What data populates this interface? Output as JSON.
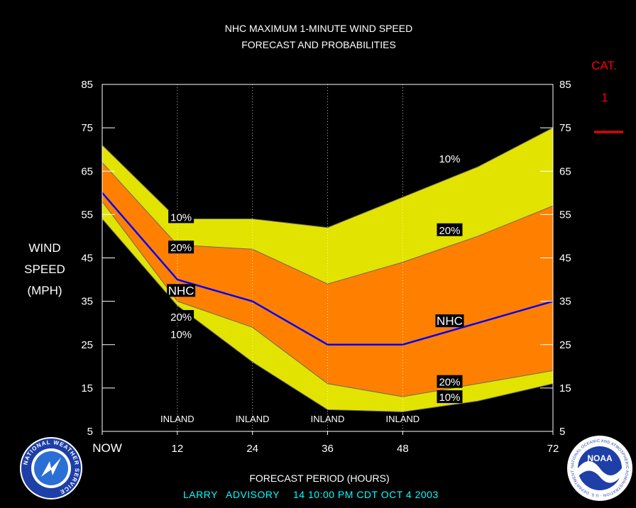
{
  "chart_data": {
    "type": "area",
    "title_line1": "NHC MAXIMUM 1-MINUTE WIND SPEED",
    "title_line2": "FORECAST AND PROBABILITIES",
    "ylabel": [
      "WIND",
      "SPEED",
      "(MPH)"
    ],
    "xlabel": "FORECAST PERIOD (HOURS)",
    "ylim": [
      5,
      85
    ],
    "xlim": [
      0,
      72
    ],
    "yticks": [
      85,
      75,
      65,
      55,
      45,
      35,
      25,
      15,
      5
    ],
    "xticks": [
      {
        "x": 0,
        "label": "NOW"
      },
      {
        "x": 12,
        "label": "12"
      },
      {
        "x": 24,
        "label": "24"
      },
      {
        "x": 36,
        "label": "36"
      },
      {
        "x": 48,
        "label": "48"
      },
      {
        "x": 72,
        "label": "72"
      }
    ],
    "inland_hours": [
      12,
      24,
      36,
      48
    ],
    "inland_label": "INLAND",
    "x": [
      0,
      12,
      24,
      36,
      48,
      60,
      72
    ],
    "series": [
      {
        "name": "10%",
        "role": "upper_10",
        "values": [
          71,
          54,
          54,
          52,
          59,
          66,
          75
        ]
      },
      {
        "name": "20%",
        "role": "upper_20",
        "values": [
          67,
          48,
          47,
          39,
          44,
          50,
          57
        ]
      },
      {
        "name": "NHC",
        "role": "forecast",
        "values": [
          60,
          40,
          35,
          25,
          25,
          30,
          35
        ]
      },
      {
        "name": "20%",
        "role": "lower_20",
        "values": [
          58,
          35,
          29,
          16,
          13,
          16,
          19
        ]
      },
      {
        "name": "10%",
        "role": "lower_10",
        "values": [
          54,
          34,
          21,
          10,
          9.5,
          12,
          16
        ]
      }
    ],
    "band_labels": [
      {
        "text": "10%",
        "x": 12.6,
        "y": 54.5
      },
      {
        "text": "20%",
        "x": 12.6,
        "y": 47.5
      },
      {
        "text": "NHC",
        "x": 12.6,
        "y": 37.5
      },
      {
        "text": "20%",
        "x": 12.6,
        "y": 31.5
      },
      {
        "text": "10%",
        "x": 12.6,
        "y": 27.5
      },
      {
        "text": "10%",
        "x": 55.5,
        "y": 68
      },
      {
        "text": "20%",
        "x": 55.5,
        "y": 51.5
      },
      {
        "text": "NHC",
        "x": 55.5,
        "y": 30.5
      },
      {
        "text": "20%",
        "x": 55.5,
        "y": 16.5
      },
      {
        "text": "10%",
        "x": 55.5,
        "y": 13
      }
    ],
    "colors": {
      "band_10": "#e3e300",
      "band_20": "#ff8000",
      "forecast_line": "#0000ff",
      "axes": "#ffffff",
      "category": "#ff0000",
      "advisory": "#00ffff"
    }
  },
  "category": {
    "label": "CAT.",
    "value": "1"
  },
  "advisory": {
    "storm": "LARRY",
    "advisory_label": "ADVISORY",
    "number": "14",
    "time": "10:00 PM CDT OCT 4 2003"
  },
  "logos": {
    "nws_text": "NATIONAL WEATHER SERVICE",
    "noaa_text": "NOAA",
    "noaa_ring": "NATIONAL OCEANIC AND ATMOSPHERIC ADMINISTRATION · U.S. DEPARTMENT OF COMMERCE ·"
  }
}
